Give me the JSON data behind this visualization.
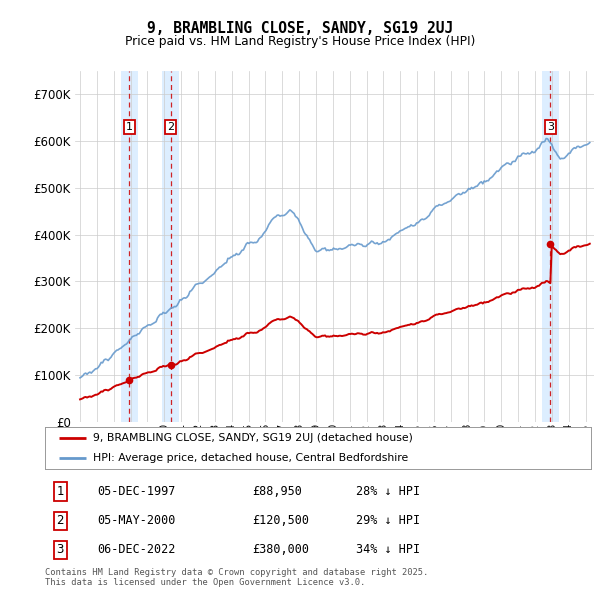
{
  "title": "9, BRAMBLING CLOSE, SANDY, SG19 2UJ",
  "subtitle": "Price paid vs. HM Land Registry's House Price Index (HPI)",
  "sale_info": [
    {
      "label": "1",
      "date": "05-DEC-1997",
      "price": "£88,950",
      "note": "28% ↓ HPI"
    },
    {
      "label": "2",
      "date": "05-MAY-2000",
      "price": "£120,500",
      "note": "29% ↓ HPI"
    },
    {
      "label": "3",
      "date": "06-DEC-2022",
      "price": "£380,000",
      "note": "34% ↓ HPI"
    }
  ],
  "legend_entries": [
    "9, BRAMBLING CLOSE, SANDY, SG19 2UJ (detached house)",
    "HPI: Average price, detached house, Central Bedfordshire"
  ],
  "footer": "Contains HM Land Registry data © Crown copyright and database right 2025.\nThis data is licensed under the Open Government Licence v3.0.",
  "sale_prices": [
    88950,
    120500,
    380000
  ],
  "sale_years": [
    1997.917,
    2000.375,
    2022.917
  ],
  "price_color": "#cc0000",
  "hpi_color": "#6699cc",
  "shade_color": "#ddeeff",
  "ylim": [
    0,
    750000
  ],
  "yticks": [
    0,
    100000,
    200000,
    300000,
    400000,
    500000,
    600000,
    700000
  ],
  "ytick_labels": [
    "£0",
    "£100K",
    "£200K",
    "£300K",
    "£400K",
    "£500K",
    "£600K",
    "£700K"
  ],
  "xmin": 1994.7,
  "xmax": 2025.5,
  "background_color": "#ffffff",
  "grid_color": "#cccccc"
}
